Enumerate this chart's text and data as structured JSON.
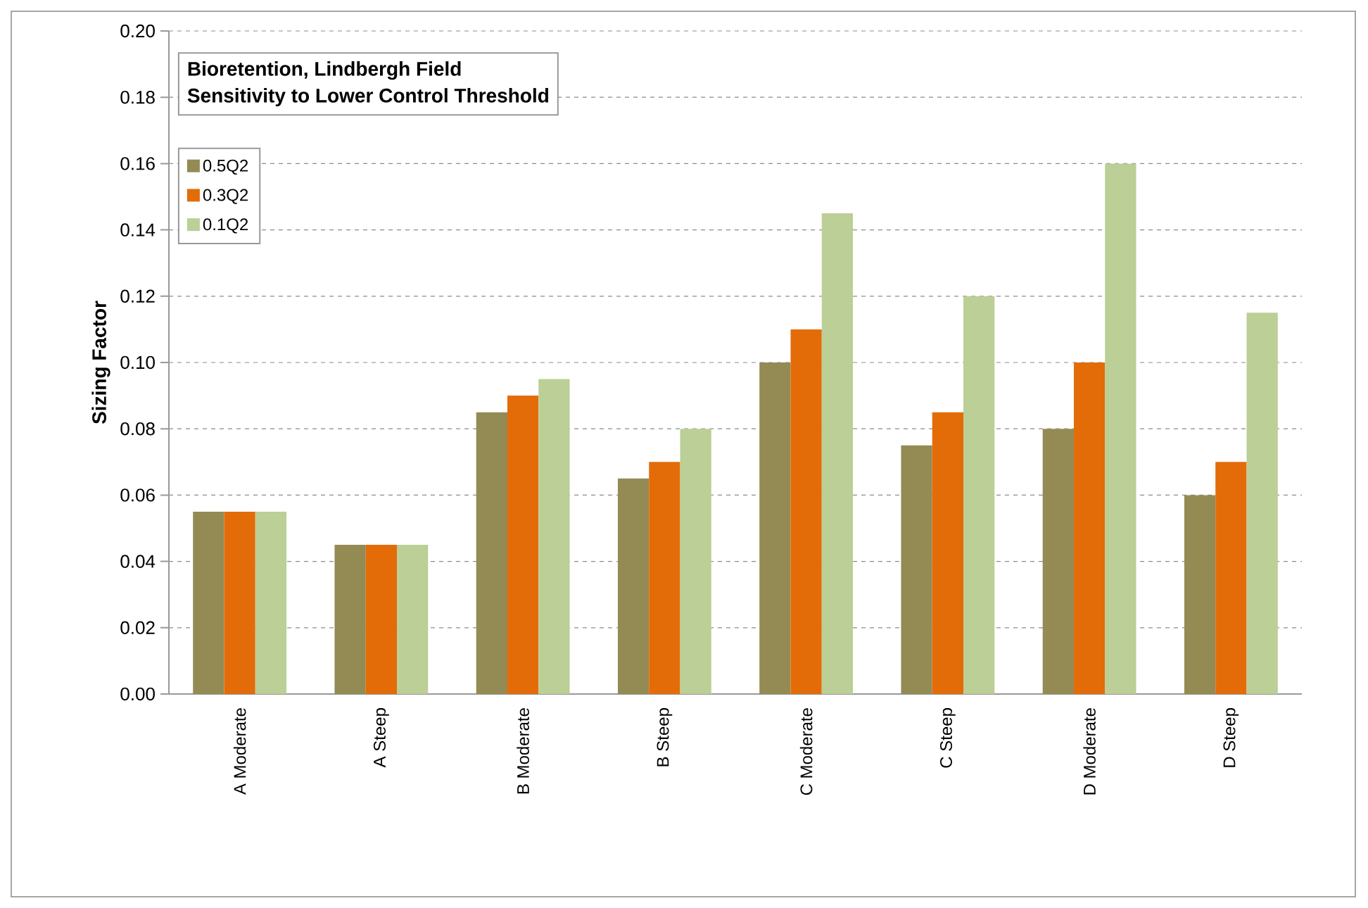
{
  "chart_data": {
    "type": "bar",
    "title": "Bioretention, Lindbergh Field",
    "subtitle": "Sensitivity to Lower Control Threshold",
    "ylabel": "Sizing Factor",
    "categories": [
      "A Moderate",
      "A Steep",
      "B Moderate",
      "B Steep",
      "C Moderate",
      "C Steep",
      "D Moderate",
      "D Steep"
    ],
    "series": [
      {
        "name": "0.5Q2",
        "color": "#948a54",
        "values": [
          0.055,
          0.045,
          0.085,
          0.065,
          0.1,
          0.075,
          0.08,
          0.06
        ]
      },
      {
        "name": "0.3Q2",
        "color": "#e36c09",
        "values": [
          0.055,
          0.045,
          0.09,
          0.07,
          0.11,
          0.085,
          0.1,
          0.07
        ]
      },
      {
        "name": "0.1Q2",
        "color": "#bbcf96",
        "values": [
          0.055,
          0.045,
          0.095,
          0.08,
          0.145,
          0.12,
          0.16,
          0.115
        ]
      }
    ],
    "ylim": [
      0,
      0.2
    ],
    "yticks": [
      {
        "value": 0,
        "label": "0.00"
      },
      0.02,
      0.04,
      0.06,
      0.08,
      {
        "value": 0.1,
        "label": "0.10"
      },
      0.12,
      0.14,
      0.16,
      0.18,
      {
        "value": 0.2,
        "label": "0.20"
      }
    ],
    "grid": "y",
    "legend": "top left"
  }
}
